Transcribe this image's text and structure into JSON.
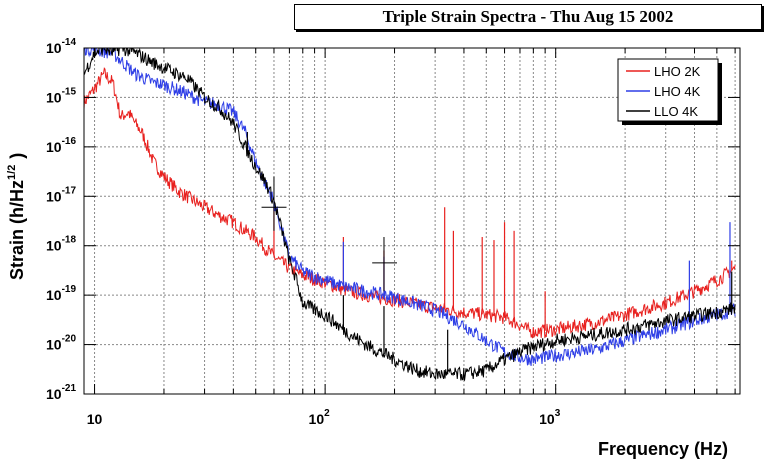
{
  "chart_data": {
    "type": "line",
    "title": "Triple Strain Spectra - Thu Aug 15 2002",
    "xlabel": "Frequency (Hz)",
    "ylabel_main": "Strain (h/Hz",
    "ylabel_exp": "1/2",
    "ylabel_close": ")",
    "xscale": "log",
    "yscale": "log",
    "xlim": [
      9,
      6300
    ],
    "ylim": [
      1e-21,
      1e-14
    ],
    "grid": true,
    "legend_position": "top-right",
    "x_ticks": [
      {
        "value": 10,
        "base": "10",
        "exp": ""
      },
      {
        "value": 100,
        "base": "10",
        "exp": "2"
      },
      {
        "value": 1000,
        "base": "10",
        "exp": "3"
      }
    ],
    "y_ticks": [
      {
        "value": 1e-14,
        "base": "10",
        "exp": "-14"
      },
      {
        "value": 1e-15,
        "base": "10",
        "exp": "-15"
      },
      {
        "value": 1e-16,
        "base": "10",
        "exp": "-16"
      },
      {
        "value": 1e-17,
        "base": "10",
        "exp": "-17"
      },
      {
        "value": 1e-18,
        "base": "10",
        "exp": "-18"
      },
      {
        "value": 1e-19,
        "base": "10",
        "exp": "-19"
      },
      {
        "value": 1e-20,
        "base": "10",
        "exp": "-20"
      },
      {
        "value": 1e-21,
        "base": "10",
        "exp": "-21"
      }
    ],
    "series": [
      {
        "name": "LHO 2K",
        "color": "#e8211f",
        "points": [
          [
            9,
            8e-16
          ],
          [
            10,
            1.5e-15
          ],
          [
            11,
            3e-15
          ],
          [
            12,
            2e-15
          ],
          [
            13,
            4e-16
          ],
          [
            14,
            5e-16
          ],
          [
            15,
            3e-16
          ],
          [
            16,
            2e-16
          ],
          [
            17,
            1e-16
          ],
          [
            18,
            5e-17
          ],
          [
            20,
            2.5e-17
          ],
          [
            23,
            1.3e-17
          ],
          [
            27,
            8e-18
          ],
          [
            30,
            6e-18
          ],
          [
            35,
            4e-18
          ],
          [
            40,
            3e-18
          ],
          [
            45,
            2e-18
          ],
          [
            50,
            1.5e-18
          ],
          [
            55,
            9e-19
          ],
          [
            60,
            6e-19
          ],
          [
            70,
            3.5e-19
          ],
          [
            80,
            2.5e-19
          ],
          [
            100,
            1.8e-19
          ],
          [
            120,
            1.3e-19
          ],
          [
            150,
            1e-19
          ],
          [
            200,
            8e-20
          ],
          [
            300,
            5.5e-20
          ],
          [
            400,
            4.5e-20
          ],
          [
            500,
            4e-20
          ],
          [
            600,
            3.5e-20
          ],
          [
            700,
            2.5e-20
          ],
          [
            750,
            2e-20
          ],
          [
            800,
            1.8e-20
          ],
          [
            1000,
            2e-20
          ],
          [
            1500,
            2.8e-20
          ],
          [
            2000,
            4e-20
          ],
          [
            3000,
            7e-20
          ],
          [
            4000,
            1.2e-19
          ],
          [
            5000,
            2e-19
          ],
          [
            6000,
            3.5e-19
          ]
        ],
        "spikes": [
          [
            60,
            6e-18
          ],
          [
            120,
            1.5e-18
          ],
          [
            180,
            8e-19
          ],
          [
            330,
            6e-18
          ],
          [
            360,
            2e-18
          ],
          [
            480,
            1.5e-18
          ],
          [
            540,
            1.3e-18
          ],
          [
            600,
            3e-18
          ],
          [
            660,
            2e-18
          ],
          [
            900,
            1.2e-19
          ],
          [
            5800,
            5e-19
          ]
        ]
      },
      {
        "name": "LHO 4K",
        "color": "#2e3ee6",
        "points": [
          [
            9,
            1e-14
          ],
          [
            12,
            8e-15
          ],
          [
            15,
            3e-15
          ],
          [
            18,
            2e-15
          ],
          [
            20,
            1.8e-15
          ],
          [
            25,
            1.2e-15
          ],
          [
            30,
            8e-16
          ],
          [
            35,
            7e-16
          ],
          [
            40,
            5e-16
          ],
          [
            45,
            2e-16
          ],
          [
            50,
            5e-17
          ],
          [
            55,
            1.8e-17
          ],
          [
            60,
            8e-18
          ],
          [
            65,
            2e-18
          ],
          [
            70,
            6e-19
          ],
          [
            80,
            3e-19
          ],
          [
            100,
            2e-19
          ],
          [
            120,
            1.5e-19
          ],
          [
            150,
            1.2e-19
          ],
          [
            200,
            9e-20
          ],
          [
            300,
            5e-20
          ],
          [
            400,
            2.5e-20
          ],
          [
            500,
            1.2e-20
          ],
          [
            600,
            7e-21
          ],
          [
            700,
            5.5e-21
          ],
          [
            800,
            5e-21
          ],
          [
            1000,
            6e-21
          ],
          [
            1500,
            8e-21
          ],
          [
            2000,
            1.2e-20
          ],
          [
            3000,
            2e-20
          ],
          [
            4000,
            3e-20
          ],
          [
            5000,
            4e-20
          ],
          [
            6000,
            5e-20
          ]
        ],
        "spikes": [
          [
            53,
            3e-17
          ],
          [
            60,
            5e-18
          ],
          [
            120,
            1.2e-18
          ],
          [
            180,
            6e-19
          ],
          [
            3800,
            5e-19
          ],
          [
            5700,
            3e-18
          ]
        ]
      },
      {
        "name": "LLO 4K",
        "color": "#000000",
        "points": [
          [
            9,
            3e-15
          ],
          [
            10,
            8e-15
          ],
          [
            11,
            1e-14
          ],
          [
            12,
            8e-15
          ],
          [
            13,
            1e-14
          ],
          [
            15,
            8e-15
          ],
          [
            18,
            5e-15
          ],
          [
            20,
            4e-15
          ],
          [
            25,
            2.5e-15
          ],
          [
            30,
            1e-15
          ],
          [
            35,
            6e-16
          ],
          [
            40,
            3e-16
          ],
          [
            45,
            1e-16
          ],
          [
            50,
            4e-17
          ],
          [
            55,
            2e-17
          ],
          [
            60,
            8e-18
          ],
          [
            65,
            2e-18
          ],
          [
            70,
            5e-19
          ],
          [
            75,
            2e-19
          ],
          [
            80,
            7e-20
          ],
          [
            90,
            5e-20
          ],
          [
            100,
            4e-20
          ],
          [
            120,
            2e-20
          ],
          [
            150,
            1e-20
          ],
          [
            200,
            5e-21
          ],
          [
            250,
            3e-21
          ],
          [
            300,
            2.5e-21
          ],
          [
            400,
            2.5e-21
          ],
          [
            500,
            3e-21
          ],
          [
            600,
            5e-21
          ],
          [
            700,
            7e-21
          ],
          [
            800,
            9e-21
          ],
          [
            1000,
            1.2e-20
          ],
          [
            1500,
            1.6e-20
          ],
          [
            2000,
            2e-20
          ],
          [
            3000,
            3e-20
          ],
          [
            4000,
            3.8e-20
          ],
          [
            5000,
            4.5e-20
          ],
          [
            6000,
            5.5e-20
          ]
        ],
        "spikes": [
          [
            46,
            2e-16
          ],
          [
            60,
            8e-18
          ],
          [
            120,
            1e-19
          ],
          [
            180,
            6e-20
          ],
          [
            340,
            2e-20
          ],
          [
            5800,
            3e-19
          ]
        ]
      }
    ],
    "markers": [
      {
        "x": 60,
        "y": 6e-18,
        "x_low": 53,
        "x_high": 68,
        "y_low": 2e-18,
        "y_high": 2.5e-17
      },
      {
        "x": 180,
        "y": 4.5e-19,
        "x_low": 160,
        "x_high": 205,
        "y_low": 1.2e-19,
        "y_high": 1.5e-18
      }
    ]
  }
}
